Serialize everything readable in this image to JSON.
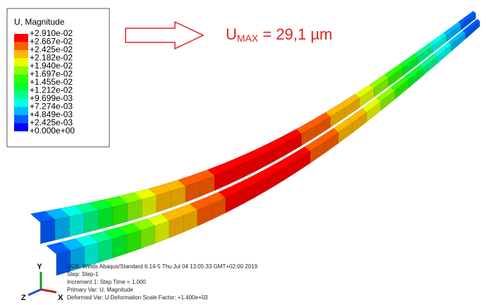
{
  "legend": {
    "title": "U, Magnitude",
    "labels": [
      "+2.910e-02",
      "+2.667e-02",
      "+2.425e-02",
      "+2.182e-02",
      "+1.940e-02",
      "+1.697e-02",
      "+1.455e-02",
      "+1.212e-02",
      "+9.699e-03",
      "+7.274e-03",
      "+4.849e-03",
      "+2.425e-03",
      "+0.000e+00"
    ],
    "colors": [
      "#ff0000",
      "#ff5d00",
      "#ffb900",
      "#e8ff00",
      "#8bff00",
      "#2eff00",
      "#00ff2e",
      "#00ff8b",
      "#00ffe8",
      "#00b9ff",
      "#005dff",
      "#0000ff"
    ]
  },
  "annotation": {
    "prefix": "U",
    "subscript": "MAX",
    "suffix": " = 29,1 µm"
  },
  "info": [
    "ODB: Winds   Abaqus/Standard 6.14-5    Thu Jul 04 13:05:33 GMT+02:00 2019",
    "Step: Step-1",
    "Increment    1: Step Time =    1.000",
    "Primary Var: U, Magnitude",
    "Deformed Var: U   Deformation Scale Factor: +1.400e+03"
  ],
  "triad": {
    "y": "Y",
    "z": "Z",
    "x": "X"
  }
}
